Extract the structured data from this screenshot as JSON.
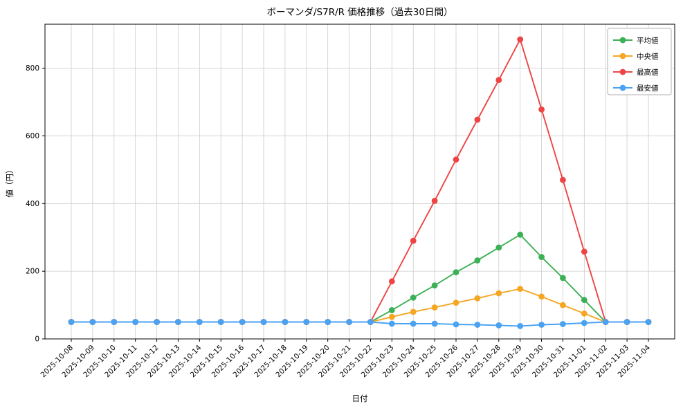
{
  "chart_data": {
    "type": "line",
    "title": "ボーマンダ/S7R/R 価格推移（過去30日間）",
    "xlabel": "日付",
    "ylabel": "値（円）",
    "ylim": [
      0,
      930
    ],
    "yticks": [
      0,
      200,
      400,
      600,
      800
    ],
    "grid": true,
    "legend_position": "top-right",
    "colors": {
      "avg": "#3cb054",
      "median": "#f5a623",
      "max": "#ef4444",
      "min": "#4aa2f2",
      "grid": "#cccccc",
      "border": "#000000",
      "legend_border": "#b0b0b0"
    },
    "categories": [
      "2025-10-08",
      "2025-10-09",
      "2025-10-10",
      "2025-10-11",
      "2025-10-12",
      "2025-10-13",
      "2025-10-14",
      "2025-10-15",
      "2025-10-16",
      "2025-10-17",
      "2025-10-18",
      "2025-10-19",
      "2025-10-20",
      "2025-10-21",
      "2025-10-22",
      "2025-10-23",
      "2025-10-24",
      "2025-10-25",
      "2025-10-26",
      "2025-10-27",
      "2025-10-28",
      "2025-10-29",
      "2025-10-30",
      "2025-10-31",
      "2025-11-01",
      "2025-11-02",
      "2025-11-03",
      "2025-11-04"
    ],
    "series": [
      {
        "name": "平均値",
        "key": "avg",
        "values": [
          50,
          50,
          50,
          50,
          50,
          50,
          50,
          50,
          50,
          50,
          50,
          50,
          50,
          50,
          50,
          85,
          122,
          158,
          197,
          232,
          270,
          308,
          242,
          180,
          115,
          50,
          50,
          50
        ]
      },
      {
        "name": "中央値",
        "key": "median",
        "values": [
          50,
          50,
          50,
          50,
          50,
          50,
          50,
          50,
          50,
          50,
          50,
          50,
          50,
          50,
          50,
          65,
          80,
          93,
          107,
          120,
          135,
          148,
          125,
          100,
          75,
          50,
          50,
          50
        ]
      },
      {
        "name": "最高値",
        "key": "max",
        "values": [
          50,
          50,
          50,
          50,
          50,
          50,
          50,
          50,
          50,
          50,
          50,
          50,
          50,
          50,
          50,
          170,
          290,
          408,
          530,
          648,
          765,
          885,
          678,
          470,
          258,
          50,
          50,
          50
        ]
      },
      {
        "name": "最安値",
        "key": "min",
        "values": [
          50,
          50,
          50,
          50,
          50,
          50,
          50,
          50,
          50,
          50,
          50,
          50,
          50,
          50,
          50,
          45,
          45,
          45,
          43,
          42,
          40,
          38,
          42,
          44,
          47,
          50,
          50,
          50
        ]
      }
    ]
  }
}
